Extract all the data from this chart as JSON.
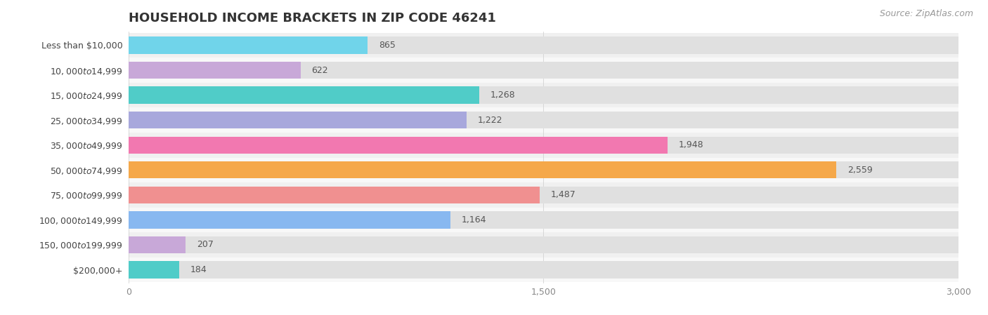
{
  "title": "HOUSEHOLD INCOME BRACKETS IN ZIP CODE 46241",
  "source": "Source: ZipAtlas.com",
  "categories": [
    "Less than $10,000",
    "$10,000 to $14,999",
    "$15,000 to $24,999",
    "$25,000 to $34,999",
    "$35,000 to $49,999",
    "$50,000 to $74,999",
    "$75,000 to $99,999",
    "$100,000 to $149,999",
    "$150,000 to $199,999",
    "$200,000+"
  ],
  "values": [
    865,
    622,
    1268,
    1222,
    1948,
    2559,
    1487,
    1164,
    207,
    184
  ],
  "bar_colors": [
    "#70d4ea",
    "#c8a8d8",
    "#50ccc8",
    "#a8a8dc",
    "#f278b0",
    "#f5a84a",
    "#f09090",
    "#88b8f0",
    "#c8a8d8",
    "#50ccc8"
  ],
  "xlim": [
    0,
    3000
  ],
  "xticks": [
    0,
    1500,
    3000
  ],
  "xtick_labels": [
    "0",
    "1,500",
    "3,000"
  ],
  "background_color": "#ffffff",
  "bar_row_bg_odd": "#f0f0f0",
  "bar_row_bg_even": "#f8f8f8",
  "bar_bg_color": "#e0e0e0",
  "title_fontsize": 13,
  "label_fontsize": 9,
  "value_fontsize": 9,
  "source_fontsize": 9
}
